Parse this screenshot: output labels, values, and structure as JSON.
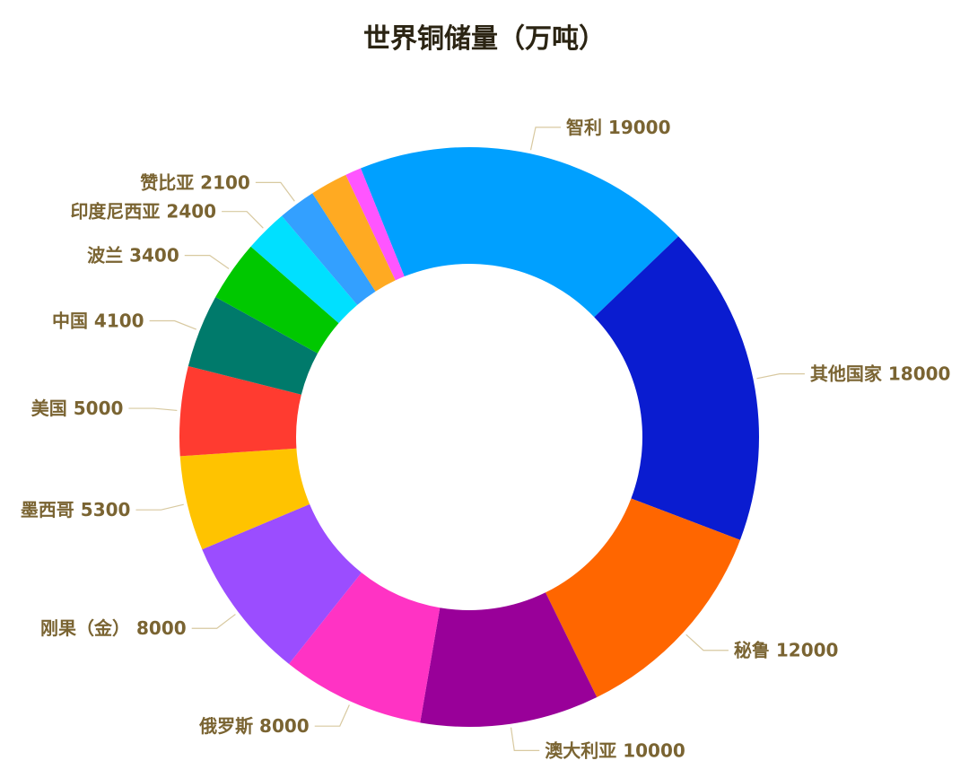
{
  "chart_data": {
    "type": "pie",
    "title": "世界铜储量（万吨）",
    "slices": [
      {
        "name": "智利",
        "value": 19000,
        "color": "#00A0FF"
      },
      {
        "name": "其他国家",
        "value": 18000,
        "color": "#0A1CD0"
      },
      {
        "name": "秘鲁",
        "value": 12000,
        "color": "#FF6600"
      },
      {
        "name": "澳大利亚",
        "value": 10000,
        "color": "#990099"
      },
      {
        "name": "俄罗斯",
        "value": 8000,
        "color": "#FF33C4"
      },
      {
        "name": "刚果（金）",
        "value": 8000,
        "color": "#9B4DFF"
      },
      {
        "name": "墨西哥",
        "value": 5300,
        "color": "#FFC300"
      },
      {
        "name": "美国",
        "value": 5000,
        "color": "#FF3B30"
      },
      {
        "name": "中国",
        "value": 4100,
        "color": "#007A6B"
      },
      {
        "name": "波兰",
        "value": 3400,
        "color": "#00C800"
      },
      {
        "name": "印度尼西亚",
        "value": 2400,
        "color": "#00E0FF"
      },
      {
        "name": "赞比亚",
        "value": 2100,
        "color": "#33A0FF"
      },
      {
        "name": "",
        "value": 2100,
        "color": "#FFAA22"
      },
      {
        "name": "",
        "value": 900,
        "color": "#FF55FF"
      }
    ]
  }
}
